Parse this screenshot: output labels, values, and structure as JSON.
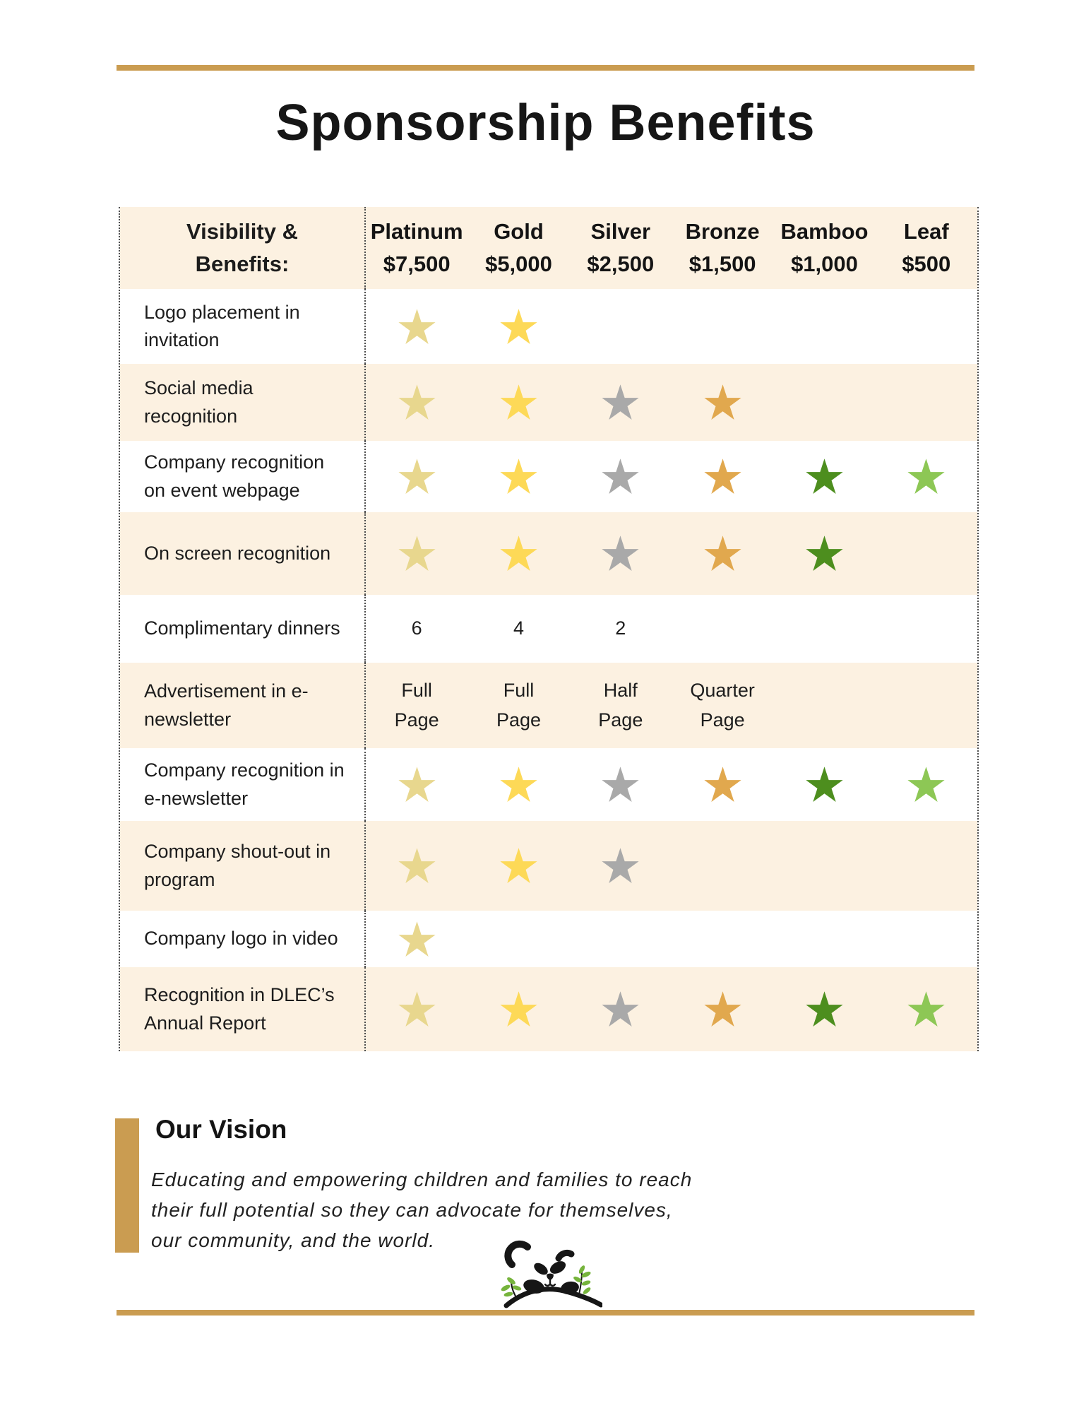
{
  "page": {
    "title": "Sponsorship Benefits",
    "accent_gold": "#ca9c51",
    "row_stripe_cream": "#fcf1e1"
  },
  "table": {
    "header": {
      "label_line1": "Visibility &",
      "label_line2": "Benefits:",
      "columns": [
        {
          "name": "Platinum",
          "price": "$7,500"
        },
        {
          "name": "Gold",
          "price": "$5,000"
        },
        {
          "name": "Silver",
          "price": "$2,500"
        },
        {
          "name": "Bronze",
          "price": "$1,500"
        },
        {
          "name": "Bamboo",
          "price": "$1,000"
        },
        {
          "name": "Leaf",
          "price": "$500"
        }
      ]
    },
    "star_colors": {
      "platinum": "#e8d78e",
      "gold": "#fdd957",
      "silver": "#a9a9a9",
      "bronze": "#e1a84e",
      "bamboo": "#4d8e1e",
      "leaf": "#8dc755"
    },
    "rows": [
      {
        "label": "Logo placement in invitation",
        "cells": [
          {
            "star": "platinum"
          },
          {
            "star": "gold"
          },
          null,
          null,
          null,
          null
        ]
      },
      {
        "label": "Social media recognition",
        "cells": [
          {
            "star": "platinum"
          },
          {
            "star": "gold"
          },
          {
            "star": "silver"
          },
          {
            "star": "bronze"
          },
          null,
          null
        ]
      },
      {
        "label": "Company recognition on event webpage",
        "cells": [
          {
            "star": "platinum"
          },
          {
            "star": "gold"
          },
          {
            "star": "silver"
          },
          {
            "star": "bronze"
          },
          {
            "star": "bamboo"
          },
          {
            "star": "leaf"
          }
        ]
      },
      {
        "label": "On screen recognition",
        "cells": [
          {
            "star": "platinum"
          },
          {
            "star": "gold"
          },
          {
            "star": "silver"
          },
          {
            "star": "bronze"
          },
          {
            "star": "bamboo"
          },
          null
        ]
      },
      {
        "label": "Complimentary dinners",
        "cells": [
          {
            "text": "6"
          },
          {
            "text": "4"
          },
          {
            "text": "2"
          },
          null,
          null,
          null
        ]
      },
      {
        "label": "Advertisement in e-newsletter",
        "cells": [
          {
            "text": "Full\nPage"
          },
          {
            "text": "Full\nPage"
          },
          {
            "text": "Half\nPage"
          },
          {
            "text": "Quarter\nPage"
          },
          null,
          null
        ]
      },
      {
        "label": "Company recognition in e-newsletter",
        "cells": [
          {
            "star": "platinum"
          },
          {
            "star": "gold"
          },
          {
            "star": "silver"
          },
          {
            "star": "bronze"
          },
          {
            "star": "bamboo"
          },
          {
            "star": "leaf"
          }
        ]
      },
      {
        "label": "Company shout-out in program",
        "cells": [
          {
            "star": "platinum"
          },
          {
            "star": "gold"
          },
          {
            "star": "silver"
          },
          null,
          null,
          null
        ]
      },
      {
        "label": "Company logo in video",
        "cells": [
          {
            "star": "platinum"
          },
          null,
          null,
          null,
          null,
          null
        ]
      },
      {
        "label": "Recognition in DLEC’s Annual Report",
        "cells": [
          {
            "star": "platinum"
          },
          {
            "star": "gold"
          },
          {
            "star": "silver"
          },
          {
            "star": "bronze"
          },
          {
            "star": "bamboo"
          },
          {
            "star": "leaf"
          }
        ]
      }
    ]
  },
  "vision": {
    "heading": "Our Vision",
    "lines": [
      "Educating and empowering children and families to reach",
      "their full potential so they can advocate for themselves,",
      "our community, and the world."
    ]
  },
  "logo": {
    "icon": "panda-on-bamboo-branch-logo",
    "leaf_green": "#76b43c",
    "black": "#161616"
  }
}
